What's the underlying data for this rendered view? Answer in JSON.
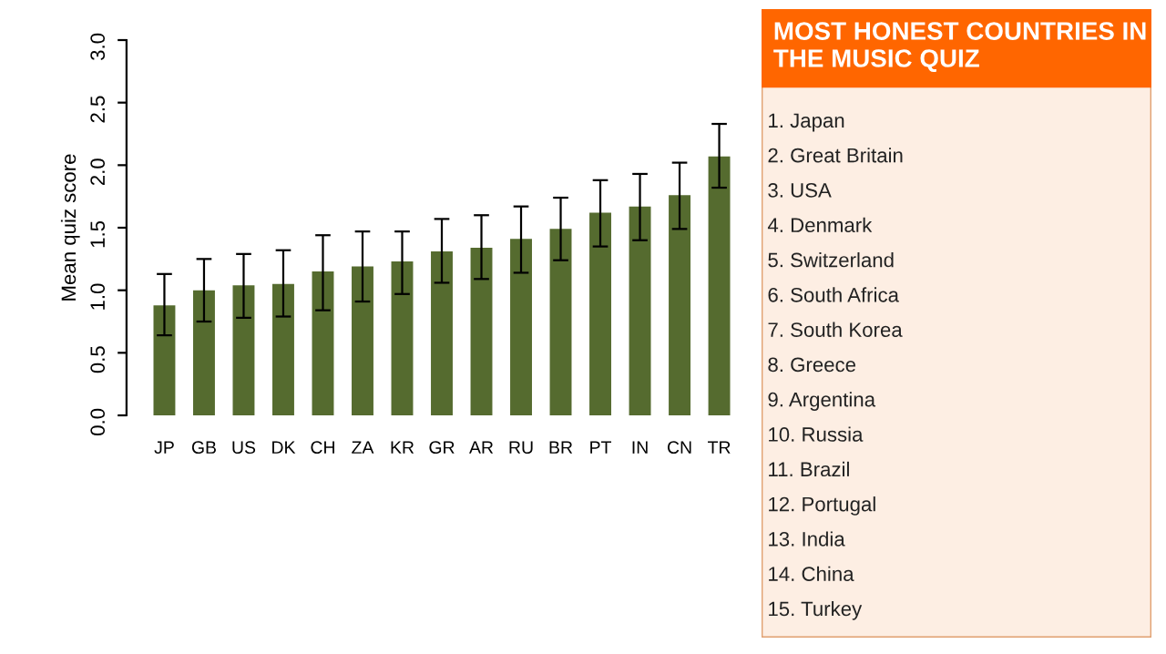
{
  "chart_data": [
    {
      "type": "bar",
      "ylabel": "Mean quiz score",
      "categories": [
        "JP",
        "GB",
        "US",
        "DK",
        "CH",
        "ZA",
        "KR",
        "GR",
        "AR",
        "RU",
        "BR",
        "PT",
        "IN",
        "CN",
        "TR"
      ],
      "values": [
        0.88,
        1.0,
        1.04,
        1.05,
        1.15,
        1.19,
        1.23,
        1.31,
        1.34,
        1.41,
        1.49,
        1.62,
        1.67,
        1.76,
        2.07
      ],
      "errors": [
        [
          0.64,
          1.13
        ],
        [
          0.75,
          1.25
        ],
        [
          0.78,
          1.29
        ],
        [
          0.79,
          1.32
        ],
        [
          0.84,
          1.44
        ],
        [
          0.91,
          1.47
        ],
        [
          0.97,
          1.47
        ],
        [
          1.06,
          1.57
        ],
        [
          1.09,
          1.6
        ],
        [
          1.14,
          1.67
        ],
        [
          1.24,
          1.74
        ],
        [
          1.35,
          1.88
        ],
        [
          1.4,
          1.93
        ],
        [
          1.49,
          2.02
        ],
        [
          1.82,
          2.33
        ]
      ],
      "color": "#556b2f",
      "ylim": [
        0,
        3
      ],
      "yticks": [
        {
          "value": 0,
          "label": "0.0"
        },
        0.5,
        {
          "value": 1,
          "label": "1.0"
        },
        1.5,
        {
          "value": 2,
          "label": "2.0"
        },
        2.5,
        {
          "value": 3,
          "label": "3.0"
        }
      ],
      "grid": false
    },
    {
      "type": "other",
      "title": "MOST HONEST COUNTRIES IN THE MUSIC QUIZ",
      "color": "#ff6600",
      "annotations": [
        "1. Japan",
        "2. Great Britain",
        "3. USA",
        "4. Denmark",
        "5. Switzerland",
        "6. South Africa",
        "7. South Korea",
        "8. Greece",
        "9. Argentina",
        "10. Russia",
        "11. Brazil",
        "12. Portugal",
        "13. India",
        "14. China",
        "15. Turkey"
      ]
    }
  ]
}
